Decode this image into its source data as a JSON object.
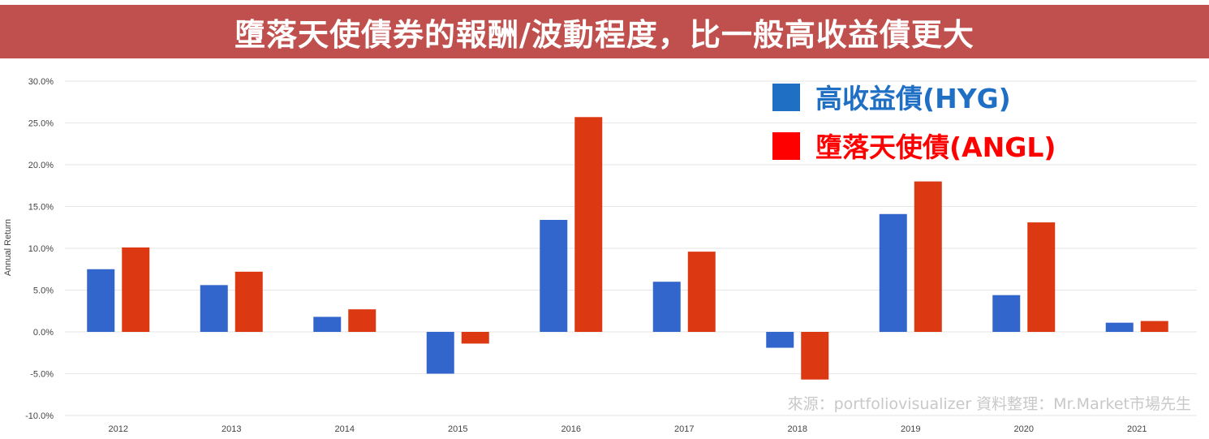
{
  "banner": {
    "title": "墮落天使債券的報酬/波動程度，比一般高收益債更大"
  },
  "source_note": "來源：portfoliovisualizer 資料整理：Mr.Market市場先生",
  "colors": {
    "banner": "#c0504d",
    "hyg": "#3366cc",
    "angl": "#dc3912",
    "legend_hyg_text": "#1f6fc5",
    "legend_angl_text": "#ff0000"
  },
  "chart_data": {
    "type": "bar",
    "ylabel": "Annual Return",
    "ylim": [
      -10,
      30
    ],
    "yticks": [
      30,
      25,
      20,
      15,
      10,
      5,
      0,
      -5,
      -10
    ],
    "ytick_labels": [
      "30.0%",
      "25.0%",
      "20.0%",
      "15.0%",
      "10.0%",
      "5.0%",
      "0.0%",
      "-5.0%",
      "-10.0%"
    ],
    "categories": [
      "2012",
      "2013",
      "2014",
      "2015",
      "2016",
      "2017",
      "2018",
      "2019",
      "2020",
      "2021"
    ],
    "series": [
      {
        "name": "高收益債(HYG)",
        "color": "#3366cc",
        "values": [
          7.5,
          5.6,
          1.8,
          -5.0,
          13.4,
          6.0,
          -1.9,
          14.1,
          4.4,
          1.1
        ]
      },
      {
        "name": "墮落天使債(ANGL)",
        "color": "#dc3912",
        "values": [
          10.1,
          7.2,
          2.7,
          -1.4,
          25.7,
          9.6,
          -5.7,
          18.0,
          13.1,
          1.3
        ]
      }
    ],
    "grid": true,
    "legend": "top-right"
  }
}
